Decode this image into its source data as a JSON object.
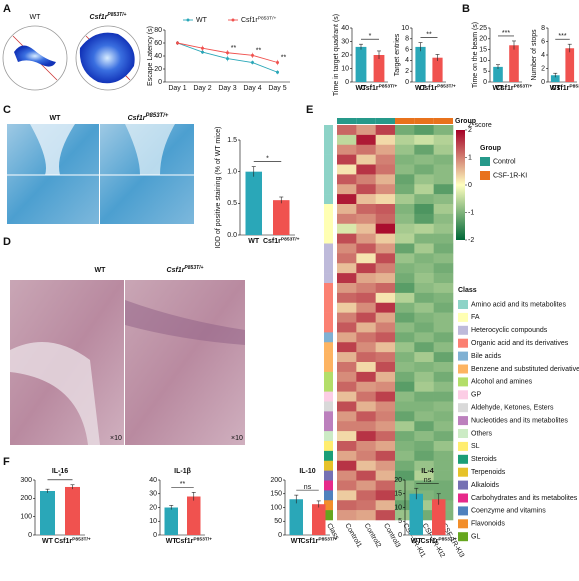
{
  "panel_labels": [
    "A",
    "B",
    "C",
    "D",
    "E",
    "F"
  ],
  "images": {
    "a_maps": [
      {
        "label": "WT"
      },
      {
        "label": "Csf1r",
        "sup": "P853T/+"
      }
    ],
    "c_stain": [
      {
        "label": "WT"
      },
      {
        "label": "Csf1r",
        "sup": "P853T/+"
      }
    ],
    "d_he": [
      {
        "label": "WT",
        "magnification": "×10"
      },
      {
        "label": "Csf1r",
        "sup": "P853T/+",
        "magnification": "×10"
      }
    ]
  },
  "chart_data": [
    {
      "type": "line",
      "ylabel": "Escape Latency (s)",
      "categories": [
        "Day 1",
        "Day 2",
        "Day 3",
        "Day 4",
        "Day 5"
      ],
      "series": [
        {
          "name": "WT",
          "name_sup": null,
          "color": "#2aa7b8",
          "values": [
            60,
            46,
            36,
            30,
            15
          ],
          "errors": [
            3,
            3,
            4,
            3,
            3
          ]
        },
        {
          "name": "Csf1r",
          "name_sup": "P853T/+",
          "color": "#f0524f",
          "values": [
            60,
            52,
            45,
            41,
            30
          ],
          "errors": [
            3,
            4,
            4,
            4,
            4
          ]
        }
      ],
      "annotations": [
        {
          "x": "Day 3",
          "text": "**"
        },
        {
          "x": "Day 4",
          "text": "**"
        },
        {
          "x": "Day 5",
          "text": "**"
        }
      ],
      "ylim": [
        0,
        80
      ],
      "yticks": [
        0,
        20,
        40,
        60,
        80
      ]
    },
    {
      "type": "bar",
      "ylabel": "Time in target quadrant (s)",
      "categories": [
        "WT",
        "Csf1r"
      ],
      "category_sups": [
        null,
        "P853T/+"
      ],
      "values": [
        26,
        20
      ],
      "errors": [
        2,
        3
      ],
      "colors": [
        "#2aa7b8",
        "#f0524f"
      ],
      "ylim": [
        0,
        40
      ],
      "yticks": [
        0,
        10,
        20,
        30,
        40
      ],
      "significance": "*"
    },
    {
      "type": "bar",
      "ylabel": "Target entries",
      "categories": [
        "WT",
        "Csf1r"
      ],
      "category_sups": [
        null,
        "P853T/+"
      ],
      "values": [
        6.5,
        4.5
      ],
      "errors": [
        0.8,
        0.6
      ],
      "colors": [
        "#2aa7b8",
        "#f0524f"
      ],
      "ylim": [
        0,
        10
      ],
      "yticks": [
        0,
        2,
        4,
        6,
        8,
        10
      ],
      "significance": "**"
    },
    {
      "type": "bar",
      "ylabel": "Time on the beam (s)",
      "categories": [
        "WT",
        "Csf1r"
      ],
      "category_sups": [
        null,
        "P853T/+"
      ],
      "values": [
        7,
        17
      ],
      "errors": [
        1,
        2
      ],
      "colors": [
        "#2aa7b8",
        "#f0524f"
      ],
      "ylim": [
        0,
        25
      ],
      "yticks": [
        0,
        5,
        10,
        15,
        20,
        25
      ],
      "significance": "***"
    },
    {
      "type": "bar",
      "ylabel": "Number of stops",
      "categories": [
        "WT",
        "Csf1r"
      ],
      "category_sups": [
        null,
        "P853T/+"
      ],
      "values": [
        1,
        5
      ],
      "errors": [
        0.3,
        0.6
      ],
      "colors": [
        "#2aa7b8",
        "#f0524f"
      ],
      "ylim": [
        0,
        8
      ],
      "yticks": [
        0,
        2,
        4,
        6,
        8
      ],
      "significance": "***"
    },
    {
      "type": "bar",
      "ylabel": "IOD of positive staining (% of WT mice)",
      "categories": [
        "WT",
        "Csf1r"
      ],
      "category_sups": [
        null,
        "P853T/+"
      ],
      "values": [
        1.0,
        0.55
      ],
      "errors": [
        0.08,
        0.05
      ],
      "colors": [
        "#2aa7b8",
        "#f0524f"
      ],
      "ylim": [
        0,
        1.5
      ],
      "yticks": [
        {
          "value": 0,
          "label": "0.0"
        },
        0.5,
        {
          "value": 1,
          "label": "1.0"
        },
        1.5
      ],
      "significance": "*"
    },
    {
      "type": "heatmap",
      "columns": [
        "Control1",
        "Control2",
        "Control3",
        "CSF-1R-KI1",
        "CSF-1R-KI2",
        "CSF-1R-KI3"
      ],
      "col_groups": [
        "Control",
        "Control",
        "Control",
        "CSF-1R-KI",
        "CSF-1R-KI",
        "CSF-1R-KI"
      ],
      "group_title": "Group",
      "legend_group_title": "Group",
      "groups": [
        {
          "name": "Control",
          "color": "#26998a"
        },
        {
          "name": "CSF-1R-KI",
          "color": "#e8721c"
        }
      ],
      "zlabel": "Z-score",
      "zlim": [
        -2,
        2
      ],
      "zticks": [
        2,
        1,
        0,
        -1,
        -2
      ],
      "colorscale": [
        "#006837",
        "#ffffbf",
        "#a50026"
      ],
      "class_title": "Class",
      "class_column_label": "Class",
      "classes": [
        {
          "name": "Amino acid and its metabolites",
          "color": "#8dd3c7"
        },
        {
          "name": "FA",
          "color": "#ffffb3"
        },
        {
          "name": "Heterocyclic compounds",
          "color": "#bebada"
        },
        {
          "name": "Organic acid and its derivatives",
          "color": "#fb8072"
        },
        {
          "name": "Bile acids",
          "color": "#80b1d3"
        },
        {
          "name": "Benzene and substituted derivatives",
          "color": "#fdb462"
        },
        {
          "name": "Alcohol and amines",
          "color": "#b3de69"
        },
        {
          "name": "GP",
          "color": "#fccde5"
        },
        {
          "name": "Aldehyde, Ketones, Esters",
          "color": "#d9d9d9"
        },
        {
          "name": "Nucleotides and its metabolites",
          "color": "#bc80bd"
        },
        {
          "name": "Others",
          "color": "#ccebc5"
        },
        {
          "name": "SL",
          "color": "#ffed6f"
        },
        {
          "name": "Steroids",
          "color": "#1b9e77"
        },
        {
          "name": "Terpenoids",
          "color": "#e6c229"
        },
        {
          "name": "Alkaloids",
          "color": "#7570b3"
        },
        {
          "name": "Carbohydrates and its metabolites",
          "color": "#e7298a"
        },
        {
          "name": "Coenzyme and vitamins",
          "color": "#4f81bd"
        },
        {
          "name": "Flavonoids",
          "color": "#f28e2b"
        },
        {
          "name": "GL",
          "color": "#66a61e"
        }
      ],
      "rows": [
        {
          "class": "Amino acid and its metabolites",
          "values": [
            1.2,
            0.8,
            1.5,
            -1.1,
            -1.3,
            -1.0
          ]
        },
        {
          "class": "Amino acid and its metabolites",
          "values": [
            -0.5,
            1.8,
            0.3,
            -0.6,
            -0.4,
            -0.6
          ]
        },
        {
          "class": "Amino acid and its metabolites",
          "values": [
            0.9,
            1.1,
            0.7,
            -0.8,
            -1.2,
            -0.7
          ]
        },
        {
          "class": "Amino acid and its metabolites",
          "values": [
            1.5,
            0.4,
            1.0,
            -1.0,
            -0.9,
            -1.0
          ]
        },
        {
          "class": "Amino acid and its metabolites",
          "values": [
            0.2,
            1.6,
            1.1,
            -0.9,
            -1.1,
            -0.9
          ]
        },
        {
          "class": "Amino acid and its metabolites",
          "values": [
            1.3,
            1.0,
            0.6,
            -1.2,
            -0.8,
            -0.9
          ]
        },
        {
          "class": "Amino acid and its metabolites",
          "values": [
            0.7,
            1.4,
            0.9,
            -1.1,
            -0.6,
            -1.3
          ]
        },
        {
          "class": "Amino acid and its metabolites",
          "values": [
            1.8,
            0.5,
            0.3,
            -0.7,
            -1.0,
            -0.9
          ]
        },
        {
          "class": "FA",
          "values": [
            0.6,
            1.2,
            1.3,
            -1.0,
            -1.4,
            -0.7
          ]
        },
        {
          "class": "FA",
          "values": [
            1.0,
            0.9,
            1.2,
            -0.9,
            -1.3,
            -0.9
          ]
        },
        {
          "class": "FA",
          "values": [
            -0.3,
            0.5,
            1.9,
            -0.7,
            -0.6,
            -0.8
          ]
        },
        {
          "class": "FA",
          "values": [
            1.4,
            0.8,
            0.4,
            -0.6,
            -1.0,
            -1.0
          ]
        },
        {
          "class": "Heterocyclic compounds",
          "values": [
            0.9,
            1.3,
            0.8,
            -1.2,
            -0.7,
            -1.1
          ]
        },
        {
          "class": "Heterocyclic compounds",
          "values": [
            1.1,
            0.2,
            1.4,
            -0.8,
            -1.0,
            -0.9
          ]
        },
        {
          "class": "Heterocyclic compounds",
          "values": [
            0.5,
            1.5,
            1.0,
            -1.0,
            -0.9,
            -1.1
          ]
        },
        {
          "class": "Heterocyclic compounds",
          "values": [
            1.6,
            0.7,
            0.6,
            -1.1,
            -0.8,
            -1.0
          ]
        },
        {
          "class": "Organic acid and its derivatives",
          "values": [
            0.8,
            1.0,
            1.2,
            -1.3,
            -0.9,
            -0.8
          ]
        },
        {
          "class": "Organic acid and its derivatives",
          "values": [
            1.2,
            1.3,
            0.2,
            -0.6,
            -1.1,
            -1.0
          ]
        },
        {
          "class": "Organic acid and its derivatives",
          "values": [
            0.4,
            0.9,
            1.6,
            -1.0,
            -0.8,
            -1.1
          ]
        },
        {
          "class": "Organic acid and its derivatives",
          "values": [
            1.0,
            1.4,
            0.7,
            -1.2,
            -1.0,
            -0.9
          ]
        },
        {
          "class": "Organic acid and its derivatives",
          "values": [
            1.3,
            0.6,
            1.0,
            -0.9,
            -1.1,
            -0.9
          ]
        },
        {
          "class": "Bile acids",
          "values": [
            0.7,
            1.1,
            1.3,
            -1.1,
            -0.9,
            -1.1
          ]
        },
        {
          "class": "Benzene and substituted derivatives",
          "values": [
            1.5,
            0.9,
            0.5,
            -0.8,
            -1.2,
            -0.9
          ]
        },
        {
          "class": "Benzene and substituted derivatives",
          "values": [
            0.6,
            1.2,
            1.1,
            -1.0,
            -0.7,
            -1.2
          ]
        },
        {
          "class": "Benzene and substituted derivatives",
          "values": [
            1.1,
            0.3,
            1.4,
            -0.9,
            -1.0,
            -0.9
          ]
        },
        {
          "class": "Alcohol and amines",
          "values": [
            0.9,
            1.5,
            0.6,
            -1.1,
            -0.8,
            -1.1
          ]
        },
        {
          "class": "Alcohol and amines",
          "values": [
            1.2,
            0.8,
            0.9,
            -1.3,
            -0.7,
            -0.9
          ]
        },
        {
          "class": "GP",
          "values": [
            0.5,
            1.1,
            1.5,
            -0.9,
            -1.1,
            -1.1
          ]
        },
        {
          "class": "Aldehyde, Ketones, Esters",
          "values": [
            1.4,
            0.6,
            0.9,
            -1.0,
            -1.0,
            -0.9
          ]
        },
        {
          "class": "Nucleotides and its metabolites",
          "values": [
            0.8,
            1.3,
            1.0,
            -1.2,
            -0.9,
            -1.0
          ]
        },
        {
          "class": "Nucleotides and its metabolites",
          "values": [
            1.0,
            1.0,
            0.8,
            -0.7,
            -1.2,
            -0.9
          ]
        },
        {
          "class": "Others",
          "values": [
            0.3,
            1.6,
            1.2,
            -1.1,
            -0.9,
            -1.1
          ]
        },
        {
          "class": "SL",
          "values": [
            1.3,
            0.9,
            0.7,
            -1.0,
            -1.1,
            -0.8
          ]
        },
        {
          "class": "Steroids",
          "values": [
            0.7,
            1.0,
            1.4,
            -0.9,
            -1.2,
            -1.0
          ]
        },
        {
          "class": "Terpenoids",
          "values": [
            1.6,
            0.5,
            0.8,
            -1.1,
            -0.8,
            -1.0
          ]
        },
        {
          "class": "Alkaloids",
          "values": [
            0.9,
            1.4,
            0.6,
            -1.3,
            -0.6,
            -1.0
          ]
        },
        {
          "class": "Carbohydrates and its metabolites",
          "values": [
            1.1,
            0.8,
            1.2,
            -0.9,
            -1.1,
            -1.1
          ]
        },
        {
          "class": "Coenzyme and vitamins",
          "values": [
            0.4,
            1.2,
            1.5,
            -1.0,
            -1.0,
            -1.1
          ]
        },
        {
          "class": "Flavonoids",
          "values": [
            1.2,
            1.1,
            0.6,
            -1.2,
            -0.7,
            -1.0
          ]
        },
        {
          "class": "GL",
          "values": [
            0.8,
            0.7,
            1.4,
            -0.8,
            -1.1,
            -1.0
          ]
        }
      ]
    },
    {
      "type": "bar",
      "title": "IL-16",
      "categories": [
        "WT",
        "Csf1r"
      ],
      "category_sups": [
        null,
        "P853T/+"
      ],
      "values": [
        240,
        262
      ],
      "errors": [
        10,
        12
      ],
      "colors": [
        "#2aa7b8",
        "#f0524f"
      ],
      "ylim": [
        0,
        300
      ],
      "yticks": [
        0,
        100,
        200,
        300
      ],
      "significance": "*"
    },
    {
      "type": "bar",
      "title": "IL-1β",
      "categories": [
        "WT",
        "Csf1r"
      ],
      "category_sups": [
        null,
        "P853T/+"
      ],
      "values": [
        20,
        28
      ],
      "errors": [
        1.5,
        3
      ],
      "colors": [
        "#2aa7b8",
        "#f0524f"
      ],
      "ylim": [
        0,
        40
      ],
      "yticks": [
        0,
        10,
        20,
        30,
        40
      ],
      "significance": "**"
    },
    {
      "type": "bar",
      "title": "IL-10",
      "categories": [
        "WT",
        "Csf1r"
      ],
      "category_sups": [
        null,
        "P853T/+"
      ],
      "values": [
        130,
        112
      ],
      "errors": [
        15,
        12
      ],
      "colors": [
        "#2aa7b8",
        "#f0524f"
      ],
      "ylim": [
        0,
        200
      ],
      "yticks": [
        0,
        50,
        100,
        150,
        200
      ],
      "significance": "ns"
    },
    {
      "type": "bar",
      "title": "IL-4",
      "categories": [
        "WT",
        "Csf1r"
      ],
      "category_sups": [
        null,
        "P853T/+"
      ],
      "values": [
        15,
        13
      ],
      "errors": [
        2,
        2
      ],
      "colors": [
        "#2aa7b8",
        "#f0524f"
      ],
      "ylim": [
        0,
        20
      ],
      "yticks": [
        0,
        5,
        10,
        15,
        20
      ],
      "significance": "ns"
    }
  ]
}
